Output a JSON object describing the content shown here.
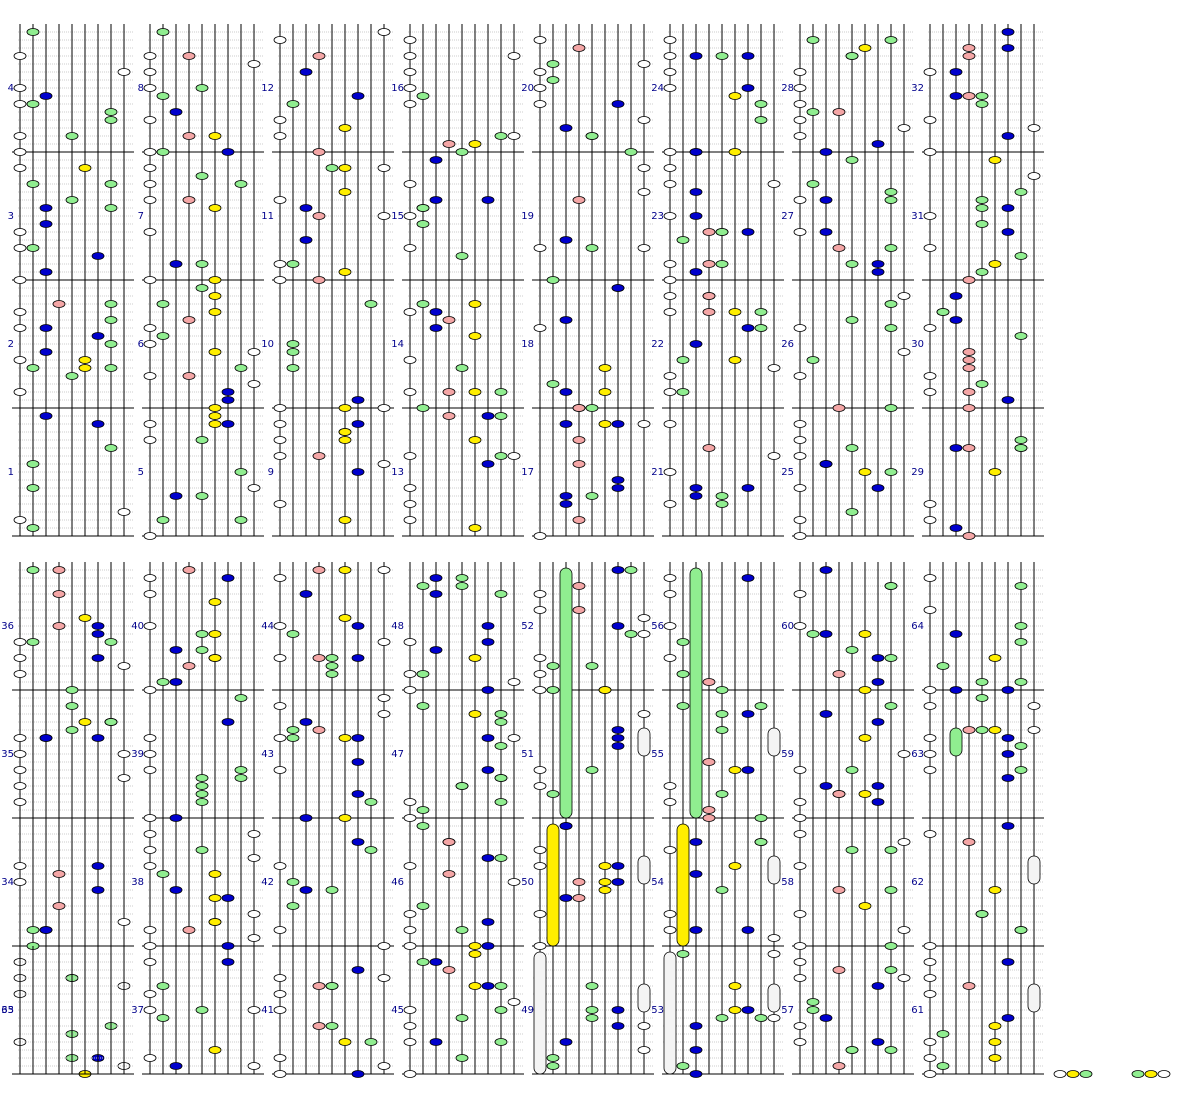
{
  "measures": [
    "1",
    "2",
    "3",
    "4",
    "5",
    "6",
    "7",
    "8",
    "9",
    "10",
    "11",
    "12",
    "13",
    "14",
    "15",
    "16",
    "17",
    "18",
    "19",
    "20",
    "21",
    "22",
    "23",
    "24",
    "25",
    "26",
    "27",
    "28",
    "29",
    "30",
    "31",
    "32",
    "33",
    "34",
    "35",
    "36",
    "37",
    "38",
    "39",
    "40",
    "41",
    "42",
    "43",
    "44",
    "45",
    "46",
    "47",
    "48",
    "49",
    "50",
    "51",
    "52",
    "53",
    "54",
    "55",
    "56",
    "57",
    "58",
    "59",
    "60",
    "61",
    "62",
    "63",
    "64",
    "65"
  ]
}
